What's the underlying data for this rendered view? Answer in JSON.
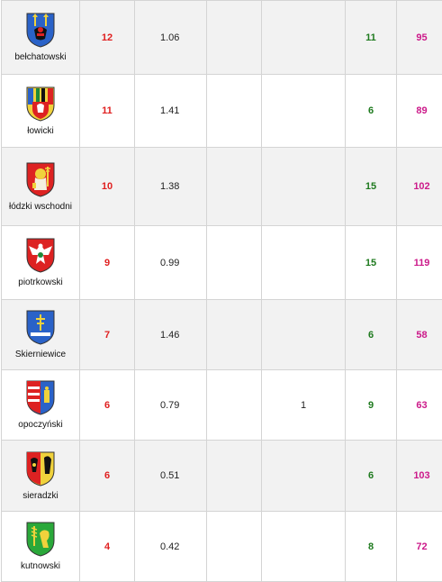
{
  "rows": [
    {
      "county": "bełchatowski",
      "v1": "12",
      "v2": "1.06",
      "v3": "",
      "v4": "",
      "v5": "11",
      "v6": "95",
      "crest": "belchatowski-crest"
    },
    {
      "county": "łowicki",
      "v1": "11",
      "v2": "1.41",
      "v3": "",
      "v4": "",
      "v5": "6",
      "v6": "89",
      "crest": "lowicki-crest"
    },
    {
      "county": "łódzki wschodni",
      "v1": "10",
      "v2": "1.38",
      "v3": "",
      "v4": "",
      "v5": "15",
      "v6": "102",
      "crest": "lodzki-wschodni-crest"
    },
    {
      "county": "piotrkowski",
      "v1": "9",
      "v2": "0.99",
      "v3": "",
      "v4": "",
      "v5": "15",
      "v6": "119",
      "crest": "piotrkowski-crest"
    },
    {
      "county": "Skierniewice",
      "v1": "7",
      "v2": "1.46",
      "v3": "",
      "v4": "",
      "v5": "6",
      "v6": "58",
      "crest": "skierniewice-crest"
    },
    {
      "county": "opoczyński",
      "v1": "6",
      "v2": "0.79",
      "v3": "",
      "v4": "1",
      "v5": "9",
      "v6": "63",
      "crest": "opoczynski-crest"
    },
    {
      "county": "sieradzki",
      "v1": "6",
      "v2": "0.51",
      "v3": "",
      "v4": "",
      "v5": "6",
      "v6": "103",
      "crest": "sieradzki-crest"
    },
    {
      "county": "kutnowski",
      "v1": "4",
      "v2": "0.42",
      "v3": "",
      "v4": "",
      "v5": "8",
      "v6": "72",
      "crest": "kutnowski-crest"
    }
  ],
  "colors": {
    "red": "#e02020",
    "green": "#1e7a1e",
    "pink": "#cc1a8a"
  }
}
